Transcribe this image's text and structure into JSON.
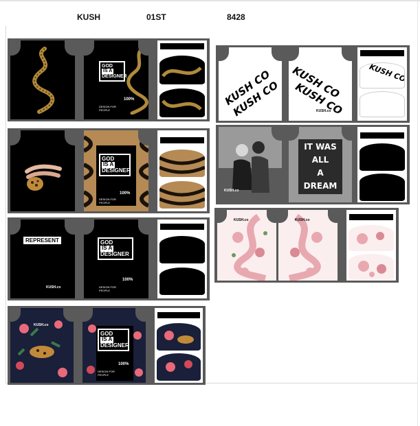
{
  "header": {
    "brand": "KUSH",
    "code": "01ST",
    "number": "8428"
  },
  "designs": {
    "god_title_line1": "GOD",
    "god_title_line2": "IS A",
    "god_title_line3": "DESIGNER",
    "god_percent": "100%",
    "god_footer": "DESIGN FOR PEOPLE",
    "represent_label": "REPRESENT",
    "brand_mark": "KUSH.co",
    "brand_script": "KUSH CO",
    "dream_line1": "IT WAS",
    "dream_line2": "ALL",
    "dream_line3": "A",
    "dream_line4": "DREAM"
  },
  "colors": {
    "panel": "#5a5a5a",
    "snake_gold": "#b08a3a",
    "leopard": "#c08a3a",
    "tiger_tan": "#b58a55",
    "floral_navy": "#1a1f3a",
    "rose_pink": "#e8a8b0"
  }
}
